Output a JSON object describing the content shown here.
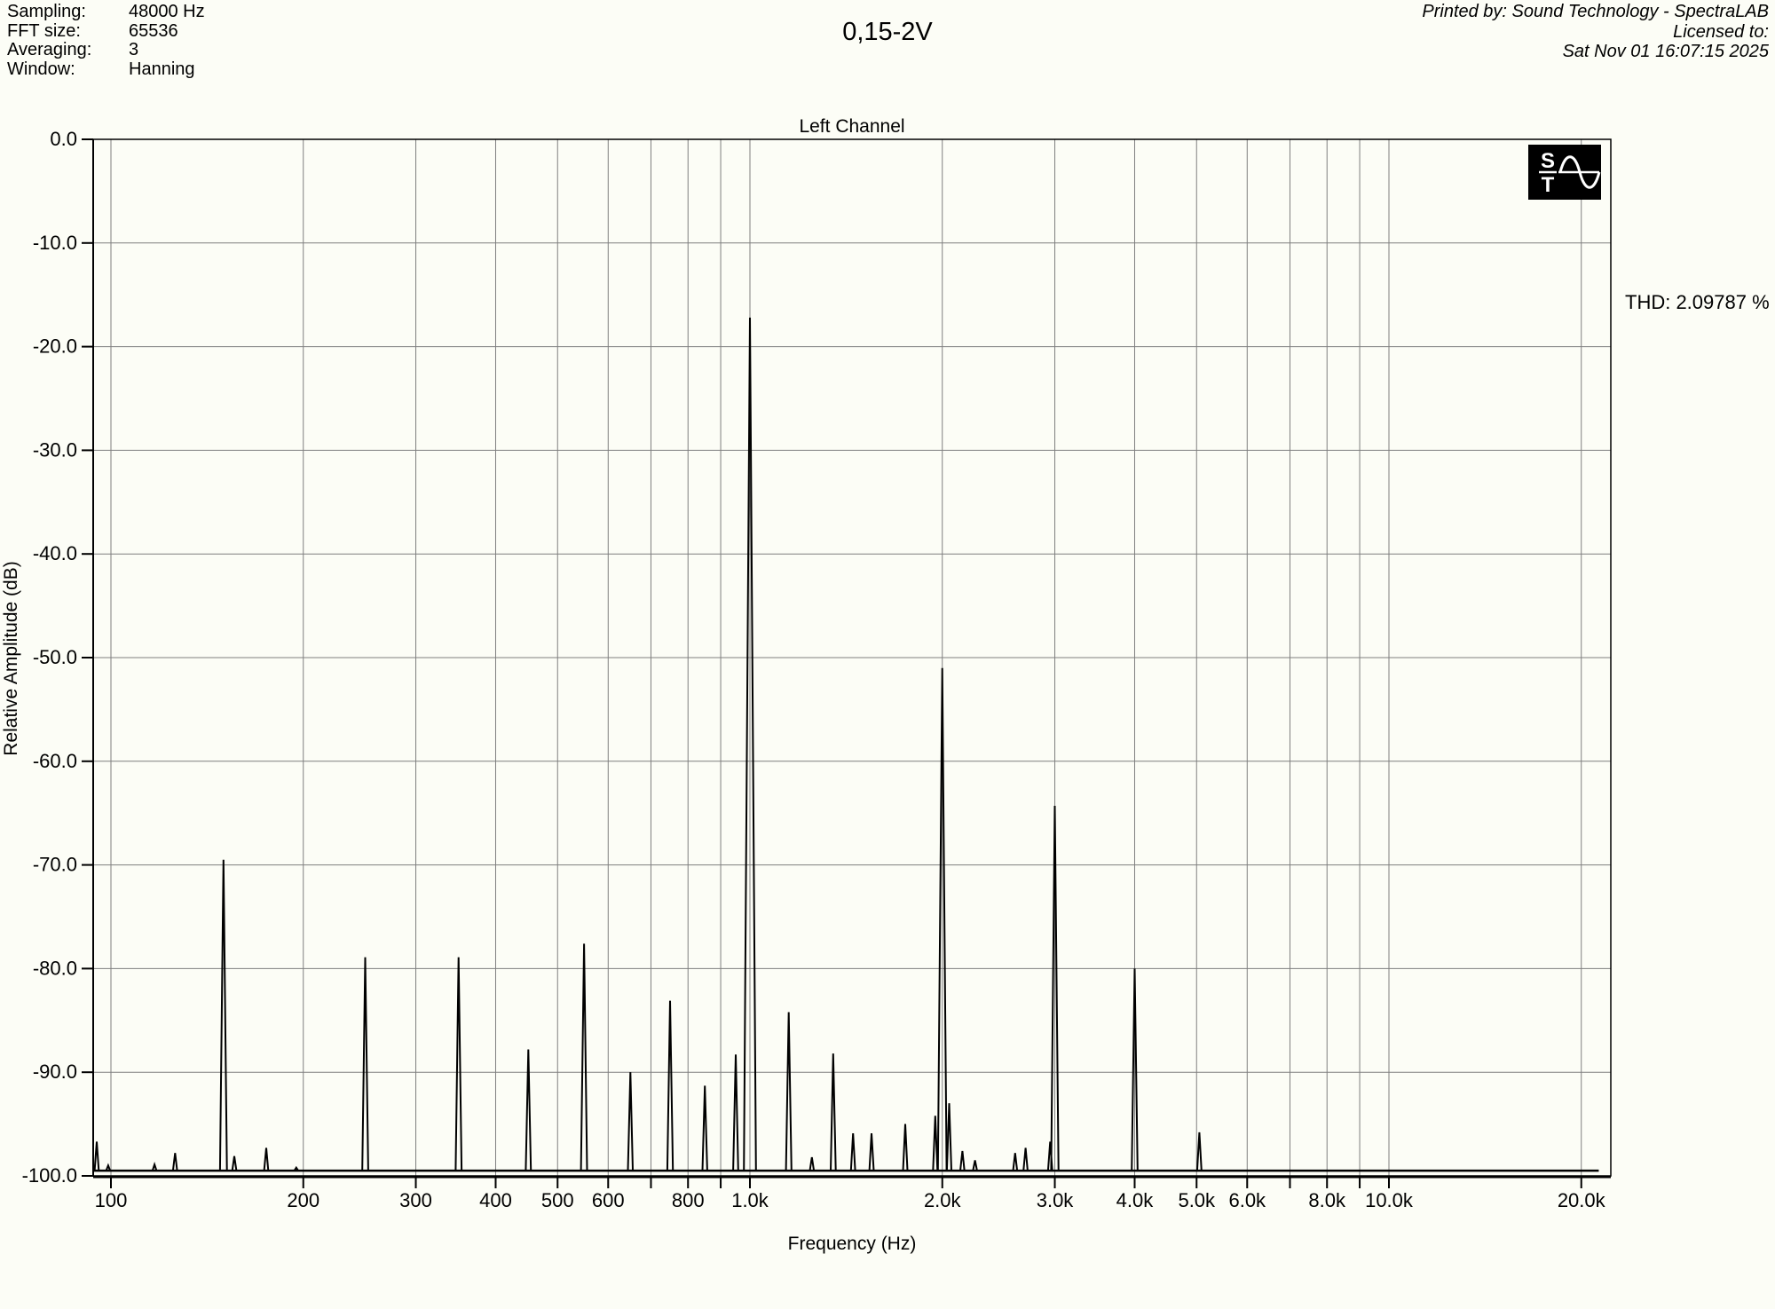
{
  "page": {
    "background": "#fcfdf6"
  },
  "header": {
    "fields": [
      {
        "label": "Sampling:",
        "value": "48000 Hz"
      },
      {
        "label": "FFT size:",
        "value": "65536"
      },
      {
        "label": "Averaging:",
        "value": "3"
      },
      {
        "label": "Window:",
        "value": "Hanning"
      }
    ],
    "title": "0,15-2V",
    "right_lines": {
      "printed_by": "Printed by: Sound Technology - SpectraLAB",
      "licensed_to": "Licensed to:",
      "datetime": "Sat Nov 01 16:07:15 2025"
    }
  },
  "chart": {
    "title": "Left Channel",
    "thd_label": "THD: 2.09787 %"
  },
  "logo": {
    "name": "sound-technology-logo",
    "letter_top": "S",
    "letter_bottom": "T"
  },
  "chart_data": {
    "type": "line",
    "title": "Left Channel",
    "xlabel": "Frequency (Hz)",
    "ylabel": "Relative Amplitude (dB)",
    "x_scale": "log",
    "xlim_hz": [
      94,
      22000
    ],
    "ylim_db": [
      -100,
      0
    ],
    "grid": true,
    "legend_position": "none",
    "colors": {
      "line": "#000000",
      "grid": "#7f7f7f",
      "border": "#000000",
      "plot_bg": "#fcfdf6"
    },
    "y_ticks": [
      {
        "db": 0,
        "label": "0.0"
      },
      {
        "db": -10,
        "label": "-10.0"
      },
      {
        "db": -20,
        "label": "-20.0"
      },
      {
        "db": -30,
        "label": "-30.0"
      },
      {
        "db": -40,
        "label": "-40.0"
      },
      {
        "db": -50,
        "label": "-50.0"
      },
      {
        "db": -60,
        "label": "-60.0"
      },
      {
        "db": -70,
        "label": "-70.0"
      },
      {
        "db": -80,
        "label": "-80.0"
      },
      {
        "db": -90,
        "label": "-90.0"
      },
      {
        "db": -100,
        "label": "-100.0"
      }
    ],
    "x_gridlines_hz": [
      100,
      200,
      300,
      400,
      500,
      600,
      700,
      800,
      900,
      1000,
      2000,
      3000,
      4000,
      5000,
      6000,
      7000,
      8000,
      9000,
      10000,
      20000
    ],
    "x_tick_labels": [
      {
        "f": 100,
        "label": "100"
      },
      {
        "f": 200,
        "label": "200"
      },
      {
        "f": 300,
        "label": "300"
      },
      {
        "f": 400,
        "label": "400"
      },
      {
        "f": 500,
        "label": "500"
      },
      {
        "f": 600,
        "label": "600"
      },
      {
        "f": 800,
        "label": "800"
      },
      {
        "f": 1000,
        "label": "1.0k"
      },
      {
        "f": 2000,
        "label": "2.0k"
      },
      {
        "f": 3000,
        "label": "3.0k"
      },
      {
        "f": 4000,
        "label": "4.0k"
      },
      {
        "f": 5000,
        "label": "5.0k"
      },
      {
        "f": 6000,
        "label": "6.0k"
      },
      {
        "f": 8000,
        "label": "8.0k"
      },
      {
        "f": 10000,
        "label": "10.0k"
      },
      {
        "f": 20000,
        "label": "20.0k"
      }
    ],
    "noise_floor_db": -99.5,
    "noise_floor_span_hz": [
      94,
      21300
    ],
    "thd_percent": 2.09787,
    "peaks": [
      {
        "f": 95,
        "db": -96.7
      },
      {
        "f": 99,
        "db": -99.0
      },
      {
        "f": 117,
        "db": -98.9
      },
      {
        "f": 126,
        "db": -97.8
      },
      {
        "f": 150,
        "db": -69.5
      },
      {
        "f": 156,
        "db": -98.1
      },
      {
        "f": 175,
        "db": -97.3
      },
      {
        "f": 195,
        "db": -99.2
      },
      {
        "f": 250,
        "db": -78.9
      },
      {
        "f": 350,
        "db": -78.9
      },
      {
        "f": 450,
        "db": -87.8
      },
      {
        "f": 550,
        "db": -77.6
      },
      {
        "f": 650,
        "db": -90.0
      },
      {
        "f": 750,
        "db": -83.1
      },
      {
        "f": 850,
        "db": -91.3
      },
      {
        "f": 950,
        "db": -88.3
      },
      {
        "f": 1000,
        "db": -17.2
      },
      {
        "f": 1150,
        "db": -84.2
      },
      {
        "f": 1250,
        "db": -98.2
      },
      {
        "f": 1350,
        "db": -88.2
      },
      {
        "f": 1450,
        "db": -95.9
      },
      {
        "f": 1550,
        "db": -95.9
      },
      {
        "f": 1750,
        "db": -95.0
      },
      {
        "f": 1950,
        "db": -94.2
      },
      {
        "f": 2000,
        "db": -51.0
      },
      {
        "f": 2050,
        "db": -93.0
      },
      {
        "f": 2150,
        "db": -97.6
      },
      {
        "f": 2250,
        "db": -98.5
      },
      {
        "f": 2600,
        "db": -97.8
      },
      {
        "f": 2700,
        "db": -97.3
      },
      {
        "f": 2950,
        "db": -96.7
      },
      {
        "f": 3000,
        "db": -64.3
      },
      {
        "f": 4000,
        "db": -80.0
      },
      {
        "f": 5050,
        "db": -95.8
      }
    ]
  }
}
